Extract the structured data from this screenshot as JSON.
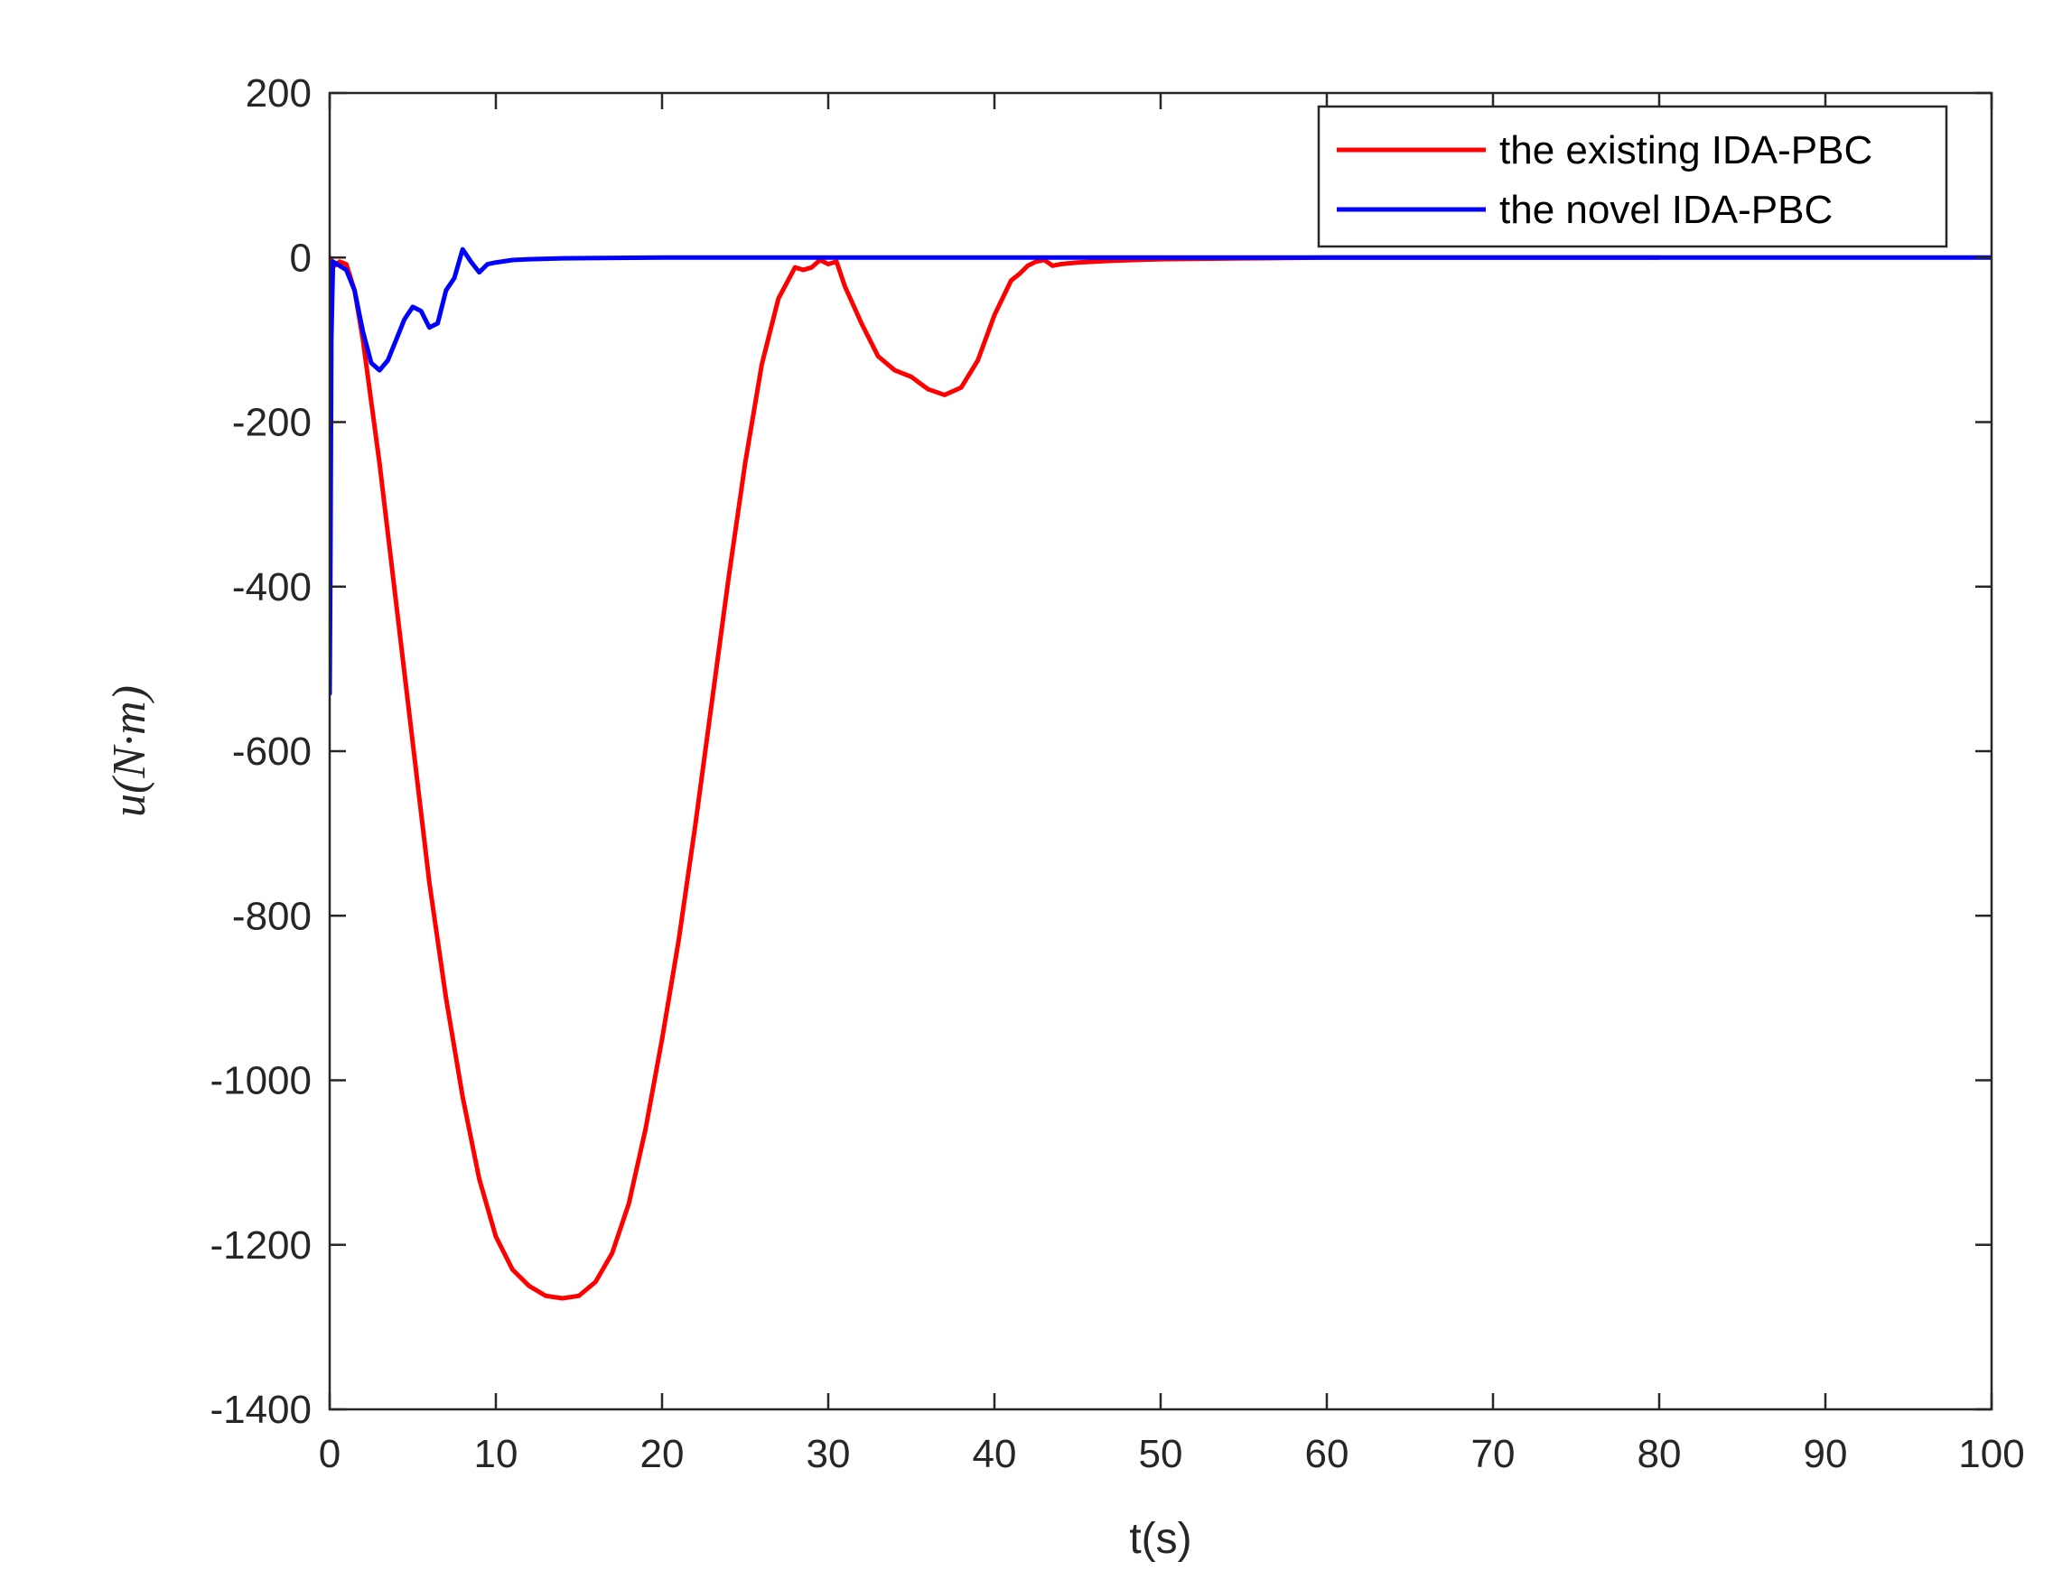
{
  "chart_data": {
    "type": "line",
    "title": "",
    "xlabel": "t(s)",
    "ylabel": "u(N·m)",
    "xlim": [
      0,
      100
    ],
    "ylim": [
      -1400,
      200
    ],
    "xticks": [
      0,
      10,
      20,
      30,
      40,
      50,
      60,
      70,
      80,
      90,
      100
    ],
    "yticks": [
      200,
      0,
      -200,
      -400,
      -600,
      -800,
      -1000,
      -1200,
      -1400
    ],
    "xtick_labels": [
      "0",
      "10",
      "20",
      "30",
      "40",
      "50",
      "60",
      "70",
      "80",
      "90",
      "100"
    ],
    "ytick_labels": [
      "200",
      "0",
      "-200",
      "-400",
      "-600",
      "-800",
      "-1000",
      "-1200",
      "-1400"
    ],
    "grid": false,
    "legend_position": "top-right",
    "series": [
      {
        "name": "the existing IDA-PBC",
        "color": "#ff0000",
        "points": [
          [
            0,
            0
          ],
          [
            0.3,
            -10
          ],
          [
            0.6,
            -5
          ],
          [
            1.0,
            -8
          ],
          [
            1.5,
            -40
          ],
          [
            2,
            -100
          ],
          [
            3,
            -250
          ],
          [
            4,
            -420
          ],
          [
            5,
            -590
          ],
          [
            6,
            -760
          ],
          [
            7,
            -900
          ],
          [
            8,
            -1020
          ],
          [
            9,
            -1120
          ],
          [
            10,
            -1190
          ],
          [
            11,
            -1230
          ],
          [
            12,
            -1250
          ],
          [
            13,
            -1262
          ],
          [
            14,
            -1265
          ],
          [
            15,
            -1262
          ],
          [
            16,
            -1245
          ],
          [
            17,
            -1210
          ],
          [
            18,
            -1150
          ],
          [
            19,
            -1060
          ],
          [
            20,
            -950
          ],
          [
            21,
            -830
          ],
          [
            22,
            -690
          ],
          [
            23,
            -540
          ],
          [
            24,
            -390
          ],
          [
            25,
            -250
          ],
          [
            26,
            -130
          ],
          [
            27,
            -50
          ],
          [
            28,
            -12
          ],
          [
            28.5,
            -15
          ],
          [
            29,
            -12
          ],
          [
            29.5,
            -3
          ],
          [
            30,
            -8
          ],
          [
            30.5,
            -5
          ],
          [
            31,
            -35
          ],
          [
            32,
            -80
          ],
          [
            33,
            -120
          ],
          [
            34,
            -137
          ],
          [
            35,
            -145
          ],
          [
            36,
            -160
          ],
          [
            37,
            -167
          ],
          [
            38,
            -158
          ],
          [
            39,
            -125
          ],
          [
            40,
            -70
          ],
          [
            41,
            -28
          ],
          [
            41.5,
            -20
          ],
          [
            42,
            -10
          ],
          [
            42.5,
            -5
          ],
          [
            43,
            -3
          ],
          [
            43.5,
            -10
          ],
          [
            44,
            -8
          ],
          [
            45,
            -6
          ],
          [
            47,
            -4
          ],
          [
            50,
            -2
          ],
          [
            55,
            -1
          ],
          [
            60,
            0
          ],
          [
            70,
            0
          ],
          [
            80,
            0
          ]
        ]
      },
      {
        "name": "the novel IDA-PBC",
        "color": "#0000ff",
        "points": [
          [
            0,
            -530
          ],
          [
            0.05,
            -350
          ],
          [
            0.1,
            -100
          ],
          [
            0.2,
            -5
          ],
          [
            0.6,
            -10
          ],
          [
            1.0,
            -15
          ],
          [
            1.5,
            -40
          ],
          [
            2,
            -90
          ],
          [
            2.5,
            -128
          ],
          [
            3,
            -137
          ],
          [
            3.5,
            -125
          ],
          [
            4,
            -100
          ],
          [
            4.5,
            -75
          ],
          [
            5,
            -60
          ],
          [
            5.5,
            -65
          ],
          [
            6,
            -85
          ],
          [
            6.5,
            -80
          ],
          [
            7,
            -40
          ],
          [
            7.5,
            -25
          ],
          [
            8,
            10
          ],
          [
            8.5,
            -5
          ],
          [
            9,
            -18
          ],
          [
            9.5,
            -8
          ],
          [
            10,
            -6
          ],
          [
            11,
            -3
          ],
          [
            12,
            -2
          ],
          [
            14,
            -1
          ],
          [
            20,
            0
          ],
          [
            40,
            0
          ],
          [
            60,
            0
          ],
          [
            80,
            0
          ],
          [
            100,
            0
          ]
        ]
      }
    ]
  }
}
